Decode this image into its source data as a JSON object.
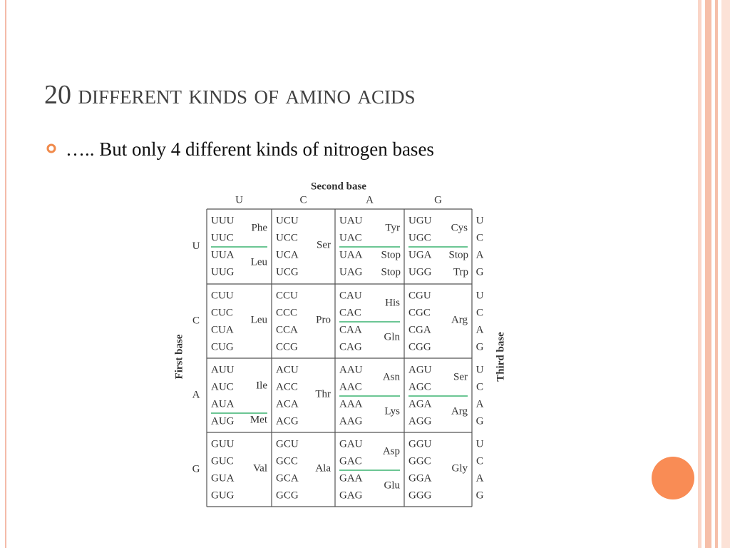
{
  "slide": {
    "title": "20 different kinds of amino acids",
    "bullet": "….. But only 4 different kinds of nitrogen bases"
  },
  "table": {
    "second_base_label": "Second base",
    "first_base_label": "First base",
    "third_base_label": "Third base",
    "second_bases": [
      "U",
      "C",
      "A",
      "G"
    ],
    "rows": [
      {
        "first_base": "U",
        "third_bases": [
          "U",
          "C",
          "A",
          "G"
        ],
        "cells": [
          [
            {
              "codons": [
                "UUU",
                "UUC"
              ],
              "names": [
                "Phe"
              ]
            },
            {
              "codons": [
                "UUA",
                "UUG"
              ],
              "names": [
                "Leu"
              ]
            }
          ],
          [
            {
              "codons": [
                "UCU",
                "UCC",
                "UCA",
                "UCG"
              ],
              "names": [
                "Ser"
              ]
            }
          ],
          [
            {
              "codons": [
                "UAU",
                "UAC"
              ],
              "names": [
                "Tyr"
              ]
            },
            {
              "codons": [
                {
                  "text": "UAA",
                  "color": "#e0218a"
                },
                {
                  "text": "UAG",
                  "color": "#e0218a"
                }
              ],
              "names": [
                {
                  "text": "Stop",
                  "color": "#e0218a"
                },
                {
                  "text": "Stop",
                  "color": "#e0218a"
                }
              ]
            }
          ],
          [
            {
              "codons": [
                "UGU",
                "UGC"
              ],
              "names": [
                "Cys"
              ]
            },
            {
              "codons": [
                {
                  "text": "UGA",
                  "color": "#e0218a"
                },
                "UGG"
              ],
              "names": [
                {
                  "text": "Stop",
                  "color": "#e0218a"
                },
                "Trp"
              ]
            }
          ]
        ]
      },
      {
        "first_base": "C",
        "third_bases": [
          "U",
          "C",
          "A",
          "G"
        ],
        "cells": [
          [
            {
              "codons": [
                "CUU",
                "CUC",
                "CUA",
                "CUG"
              ],
              "names": [
                "Leu"
              ]
            }
          ],
          [
            {
              "codons": [
                "CCU",
                "CCC",
                "CCA",
                "CCG"
              ],
              "names": [
                "Pro"
              ]
            }
          ],
          [
            {
              "codons": [
                "CAU",
                "CAC"
              ],
              "names": [
                "His"
              ]
            },
            {
              "codons": [
                "CAA",
                "CAG"
              ],
              "names": [
                "Gln"
              ]
            }
          ],
          [
            {
              "codons": [
                "CGU",
                "CGC",
                "CGA",
                "CGG"
              ],
              "names": [
                "Arg"
              ]
            }
          ]
        ]
      },
      {
        "first_base": "A",
        "third_bases": [
          "U",
          "C",
          "A",
          "G"
        ],
        "cells": [
          [
            {
              "codons": [
                "AUU",
                "AUC",
                "AUA"
              ],
              "names": [
                "Ile"
              ]
            },
            {
              "codons": [
                {
                  "text": "AUG",
                  "color": "#1aa36a"
                }
              ],
              "names": [
                "Met"
              ]
            }
          ],
          [
            {
              "codons": [
                "ACU",
                "ACC",
                "ACA",
                "ACG"
              ],
              "names": [
                "Thr"
              ]
            }
          ],
          [
            {
              "codons": [
                "AAU",
                "AAC"
              ],
              "names": [
                "Asn"
              ]
            },
            {
              "codons": [
                "AAA",
                "AAG"
              ],
              "names": [
                "Lys"
              ]
            }
          ],
          [
            {
              "codons": [
                "AGU",
                "AGC"
              ],
              "names": [
                "Ser"
              ]
            },
            {
              "codons": [
                "AGA",
                "AGG"
              ],
              "names": [
                "Arg"
              ]
            }
          ]
        ]
      },
      {
        "first_base": "G",
        "third_bases": [
          "U",
          "C",
          "A",
          "G"
        ],
        "cells": [
          [
            {
              "codons": [
                "GUU",
                "GUC",
                "GUA",
                "GUG"
              ],
              "names": [
                "Val"
              ]
            }
          ],
          [
            {
              "codons": [
                "GCU",
                "GCC",
                "GCA",
                "GCG"
              ],
              "names": [
                "Ala"
              ]
            }
          ],
          [
            {
              "codons": [
                "GAU",
                "GAC"
              ],
              "names": [
                "Asp"
              ]
            },
            {
              "codons": [
                "GAA",
                "GAG"
              ],
              "names": [
                "Glu"
              ]
            }
          ],
          [
            {
              "codons": [
                "GGU",
                "GGC",
                "GGA",
                "GGG"
              ],
              "names": [
                "Gly"
              ]
            }
          ]
        ]
      }
    ]
  }
}
